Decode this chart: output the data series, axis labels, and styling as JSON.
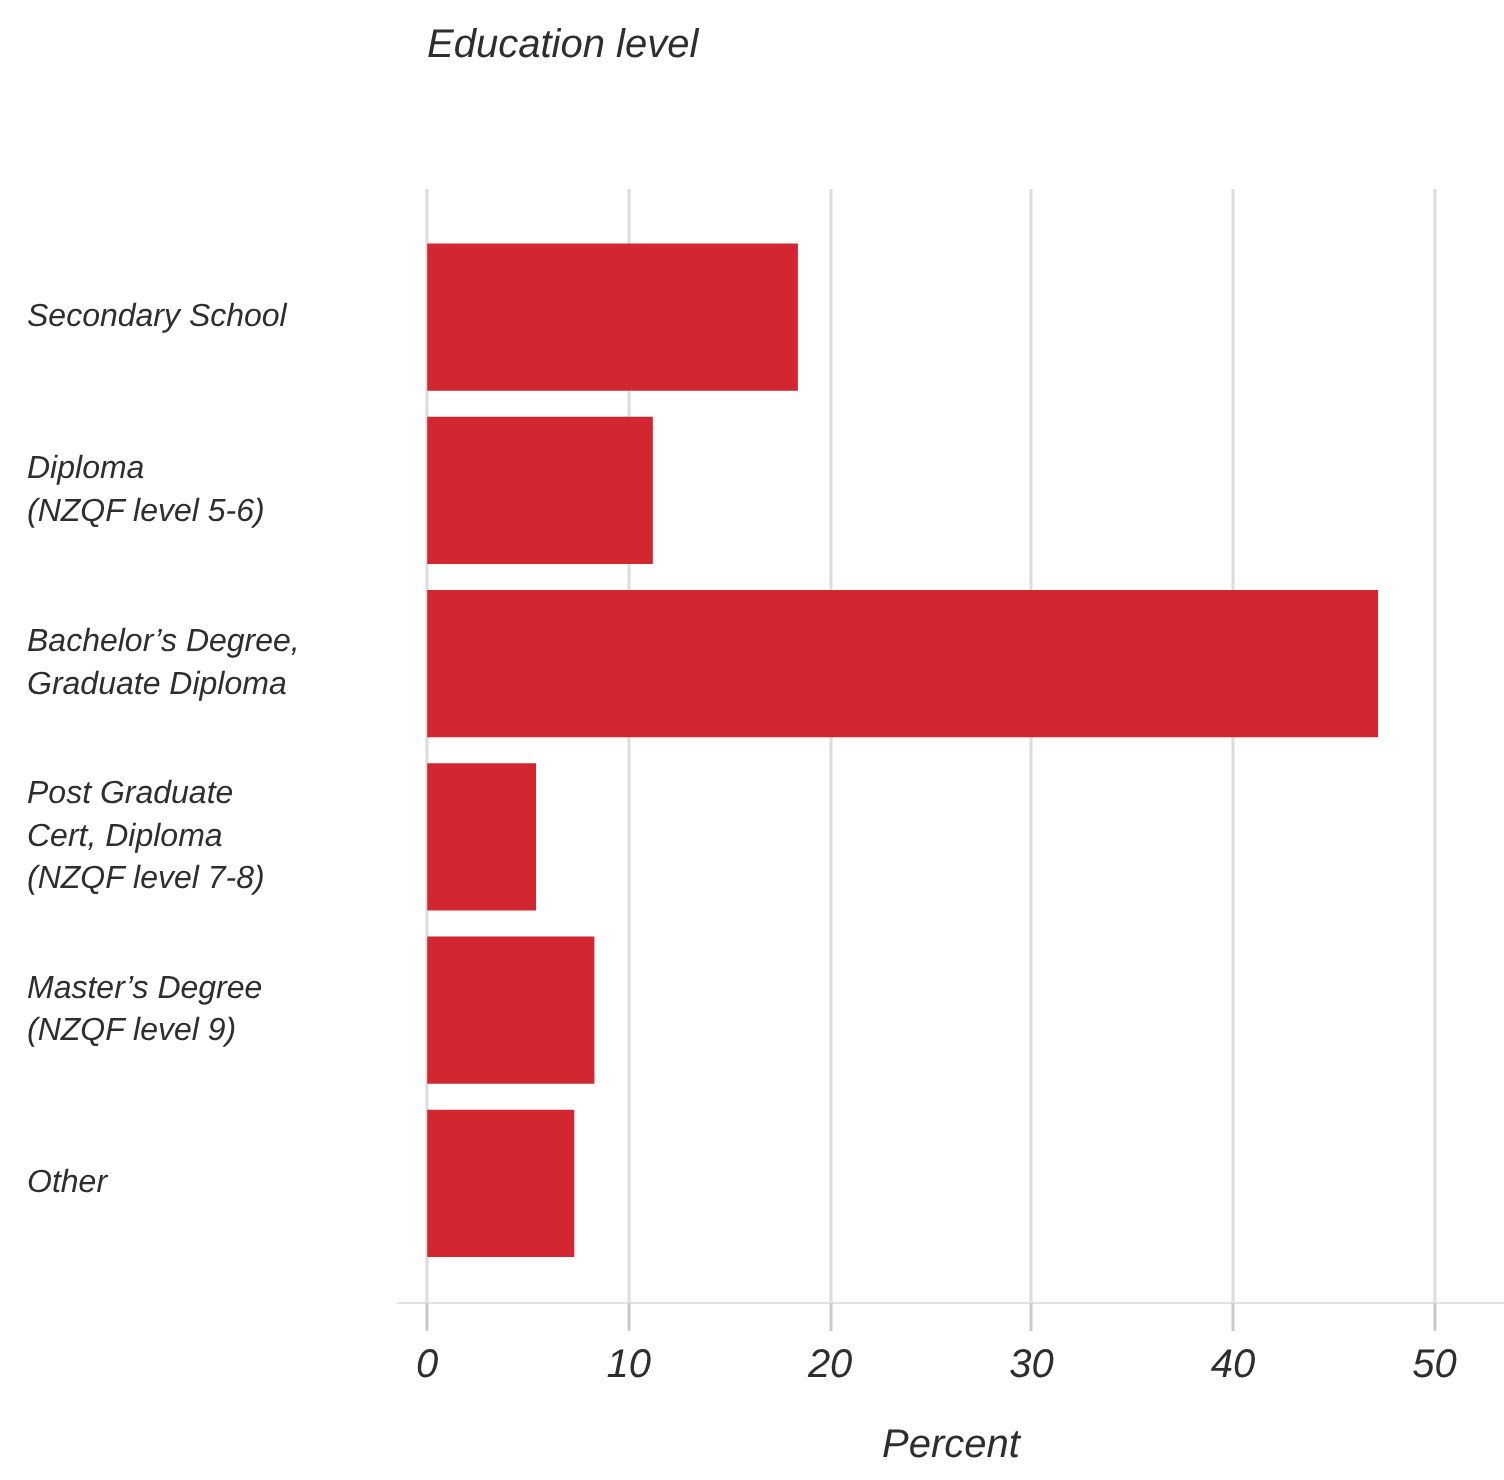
{
  "chart_data": {
    "type": "bar",
    "orientation": "horizontal",
    "ylabel": "Education level",
    "xlabel": "Percent",
    "categories": [
      "Secondary School",
      "Diploma\n(NZQF level 5-6)",
      "Bachelor’s Degree,\nGraduate Diploma",
      "Post Graduate\nCert, Diploma\n(NZQF level 7-8)",
      "Master’s Degree\n(NZQF level 9)",
      "Other"
    ],
    "values": [
      18.4,
      11.2,
      47.2,
      5.4,
      8.3,
      7.3
    ],
    "color": "#d22630",
    "xlim": [
      -1.5,
      53.5
    ],
    "xticks": [
      0,
      10,
      20,
      30,
      40,
      50
    ],
    "grid": "x"
  }
}
